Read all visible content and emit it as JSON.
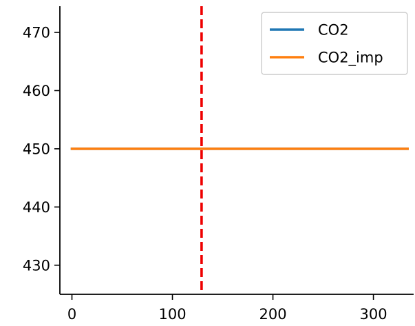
{
  "chart_data": {
    "type": "line",
    "title": "",
    "xlabel": "",
    "ylabel": "",
    "xlim": [
      -12,
      340
    ],
    "ylim": [
      425,
      474.5
    ],
    "x_ticks": [
      {
        "value": 0,
        "label": "0"
      },
      {
        "value": 100,
        "label": "100"
      },
      {
        "value": 200,
        "label": "200"
      },
      {
        "value": 300,
        "label": "300"
      }
    ],
    "y_ticks": [
      {
        "value": 430,
        "label": "430"
      },
      {
        "value": 440,
        "label": "440"
      },
      {
        "value": 450,
        "label": "450"
      },
      {
        "value": 460,
        "label": "460"
      },
      {
        "value": 470,
        "label": "470"
      }
    ],
    "series": [
      {
        "name": "CO2",
        "color": "#1f77b4",
        "x": [
          0,
          334
        ],
        "y": [
          450,
          450
        ]
      },
      {
        "name": "CO2_imp",
        "color": "#ff7f0e",
        "x": [
          0,
          334
        ],
        "y": [
          450,
          450
        ]
      }
    ],
    "vline": {
      "x": 129,
      "color": "#ee0000",
      "style": "dashed"
    },
    "grid": false,
    "legend": {
      "position": "top-right"
    }
  }
}
